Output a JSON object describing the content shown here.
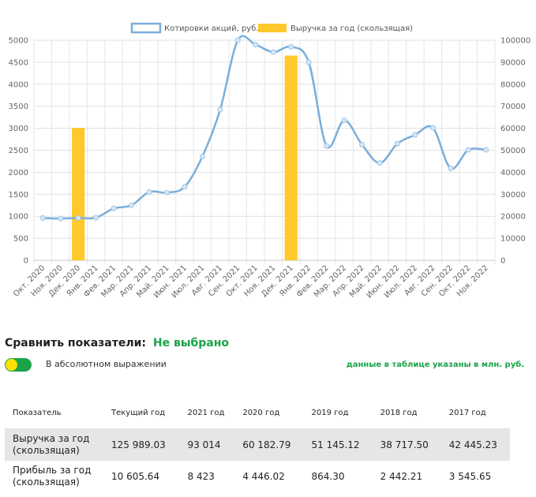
{
  "chart_data": {
    "type": "bar+line",
    "legend": [
      {
        "name": "Котировки акций, руб.",
        "color": "#7aaedb",
        "style": "line"
      },
      {
        "name": "Выручка за год (скользящая)",
        "color": "#ffc82c",
        "style": "bar"
      }
    ],
    "categories": [
      "Окт. 2020",
      "Ноя. 2020",
      "Дек. 2020",
      "Янв. 2021",
      "Фев. 2021",
      "Мар. 2021",
      "Апр. 2021",
      "Май. 2021",
      "Июн. 2021",
      "Июл. 2021",
      "Авг. 2021",
      "Сен. 2021",
      "Окт. 2021",
      "Ноя. 2021",
      "Дек. 2021",
      "Янв. 2022",
      "Фев. 2022",
      "Мар. 2022",
      "Апр. 2022",
      "Май. 2022",
      "Июн. 2022",
      "Июл. 2022",
      "Авг. 2022",
      "Сен. 2022",
      "Окт. 2022",
      "Ноя. 2022"
    ],
    "series": [
      {
        "name": "Котировки акций, руб.",
        "axis": "left",
        "type": "line",
        "values": [
          960,
          950,
          960,
          970,
          1180,
          1250,
          1550,
          1540,
          1670,
          2360,
          3420,
          5000,
          4900,
          4730,
          4850,
          4500,
          2600,
          3180,
          2630,
          2210,
          2650,
          2850,
          3010,
          2090,
          2510,
          2510
        ]
      },
      {
        "name": "Выручка за год (скользящая)",
        "axis": "right",
        "type": "bar",
        "values": [
          null,
          null,
          60183,
          null,
          null,
          null,
          null,
          null,
          null,
          null,
          null,
          null,
          null,
          null,
          93014,
          null,
          null,
          null,
          null,
          null,
          null,
          null,
          null,
          null,
          null,
          null
        ]
      }
    ],
    "y_left": {
      "min": 0,
      "max": 5000,
      "ticks": [
        0,
        500,
        1000,
        1500,
        2000,
        2500,
        3000,
        3500,
        4000,
        4500,
        5000
      ]
    },
    "y_right": {
      "min": 0,
      "max": 100000,
      "ticks": [
        0,
        10000,
        20000,
        30000,
        40000,
        50000,
        60000,
        70000,
        80000,
        90000,
        100000
      ]
    },
    "grid": true,
    "legend_position": "top"
  },
  "compare": {
    "label": "Сравнить показатели:",
    "value": "Не выбрано"
  },
  "toggle": {
    "label": "В абсолютном выражении",
    "on_color": "#1aa34a",
    "knob_color": "#ffe100"
  },
  "unit_note": "данные в таблице указаны в млн. руб.",
  "table": {
    "headers": [
      "Показатель",
      "Текущий год",
      "2021 год",
      "2020 год",
      "2019 год",
      "2018 год",
      "2017 год"
    ],
    "rows": [
      [
        "Выручка за год (скользящая)",
        "125 989.03",
        "93 014",
        "60 182.79",
        "51 145.12",
        "38 717.50",
        "42 445.23"
      ],
      [
        "Прибыль за год (скользящая)",
        "10 605.64",
        "8 423",
        "4 446.02",
        "864.30",
        "2 442.21",
        "3 545.65"
      ]
    ]
  }
}
